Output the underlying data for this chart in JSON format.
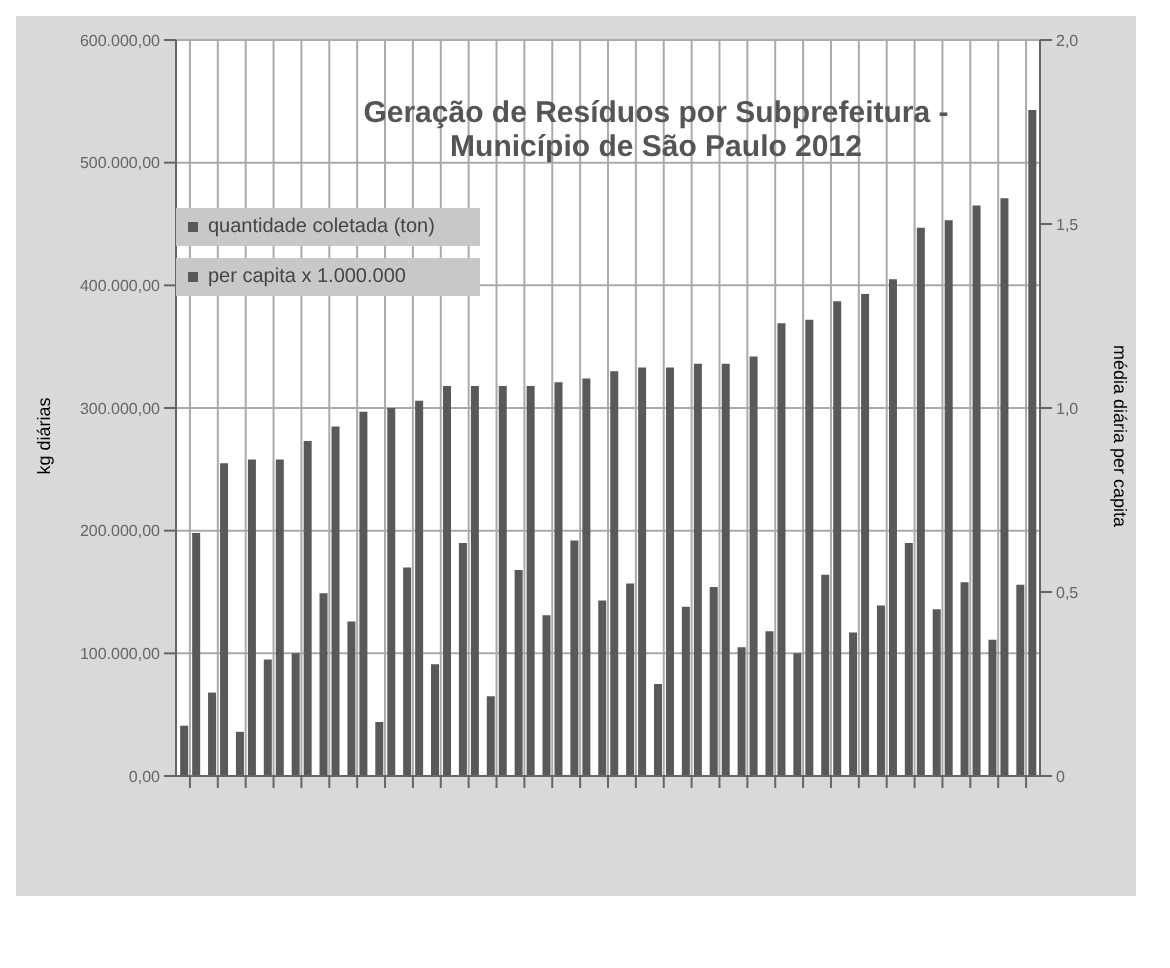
{
  "chart_data": {
    "type": "bar",
    "title": "Geração de Resíduos por Subprefeitura - Município de São Paulo 2012",
    "ylabel": "kg diárias",
    "y2label": "média diária per capita",
    "categories": [
      null,
      null,
      null,
      null,
      null,
      null,
      null,
      null,
      null,
      null,
      null,
      null,
      null,
      null,
      null,
      null,
      null,
      null,
      null,
      null,
      null,
      null,
      null,
      null,
      null,
      null,
      null,
      null,
      null,
      null,
      null
    ],
    "series": [
      {
        "name": "quantidade coletada (ton)",
        "color": "#595959",
        "values": [
          41000,
          68000,
          36000,
          95000,
          100000,
          149000,
          126000,
          44000,
          170000,
          91000,
          190000,
          65000,
          168000,
          131000,
          192000,
          143000,
          157000,
          75000,
          138000,
          154000,
          105000,
          118000,
          100000,
          164000,
          117000,
          139000,
          190000,
          136000,
          158000,
          111000,
          156000
        ]
      },
      {
        "name": "per capita x 1.000.000",
        "color": "#595959",
        "axis": "y2",
        "values": [
          0.66,
          0.85,
          0.86,
          0.86,
          0.91,
          0.95,
          0.99,
          1.0,
          1.02,
          1.06,
          1.06,
          1.06,
          1.06,
          1.07,
          1.08,
          1.1,
          1.11,
          1.11,
          1.12,
          1.12,
          1.14,
          1.23,
          1.24,
          1.29,
          1.31,
          1.35,
          1.49,
          1.51,
          1.55,
          1.57,
          1.81
        ]
      }
    ],
    "ylim": [
      0,
      600000
    ],
    "yticks": [
      {
        "value": 0,
        "label": "0,00"
      },
      {
        "value": 100000,
        "label": "100.000,00"
      },
      {
        "value": 200000,
        "label": "200.000,00"
      },
      {
        "value": 300000,
        "label": "300.000,00"
      },
      {
        "value": 400000,
        "label": "400.000,00"
      },
      {
        "value": 500000,
        "label": "500.000,00"
      },
      {
        "value": 600000,
        "label": "600.000,00"
      }
    ],
    "y2lim": [
      0,
      2
    ],
    "y2ticks": [
      0,
      {
        "value": 0.5,
        "label": "0,5"
      },
      {
        "value": 1,
        "label": "1,0"
      },
      {
        "value": 1.5,
        "label": "1,5"
      },
      {
        "value": 2,
        "label": "2,0"
      }
    ],
    "grid": true,
    "legend": "top left"
  }
}
